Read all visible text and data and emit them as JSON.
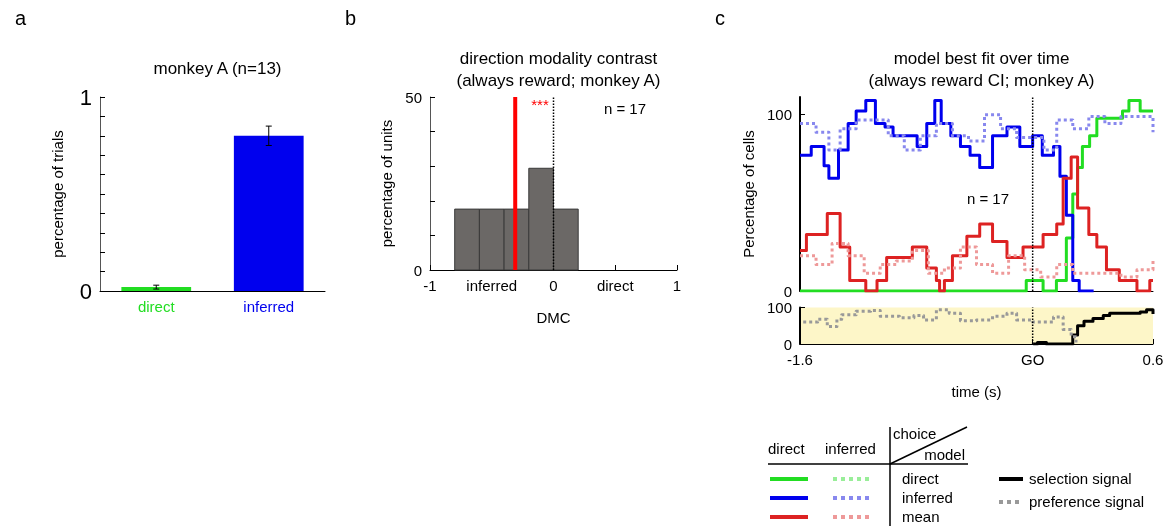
{
  "chart_data": [
    {
      "type": "bar",
      "title": "monkey A (n=13)",
      "ylabel": "percentage of trials",
      "categories": [
        "direct",
        "inferred"
      ],
      "values": [
        0.02,
        0.8
      ],
      "colors": [
        "#22dd22",
        "#0000ee"
      ],
      "errors": [
        0.01,
        0.05
      ],
      "ylim": [
        0,
        1
      ],
      "yticks": [
        0,
        {
          "value": 0.1,
          "label": null
        },
        {
          "value": 0.2,
          "label": null
        },
        {
          "value": 0.3,
          "label": null
        },
        {
          "value": 0.4,
          "label": null
        },
        {
          "value": 0.5,
          "label": null
        },
        {
          "value": 0.6,
          "label": null
        },
        {
          "value": 0.7,
          "label": null
        },
        {
          "value": 0.8,
          "label": null
        },
        {
          "value": 0.9,
          "label": null
        },
        1
      ],
      "annotations": [
        "a"
      ]
    },
    {
      "type": "histogram",
      "title": "direction modality contrast\n(always reward; monkey A)",
      "xlabel": "DMC",
      "ylabel": "percentage of units",
      "bins": [
        -0.8,
        -0.6,
        -0.4,
        -0.2,
        0,
        0.2
      ],
      "values": [
        17.6,
        17.6,
        17.6,
        29.4,
        17.6
      ],
      "color": "#6b6866",
      "xlim": [
        -1,
        1
      ],
      "xticks": [
        -1,
        {
          "value": -0.5,
          "label": "inferred"
        },
        0,
        {
          "value": 0.5,
          "label": "direct"
        },
        1
      ],
      "ylim": [
        0,
        50
      ],
      "yticks": [
        0,
        {
          "value": 10,
          "label": null
        },
        {
          "value": 20,
          "label": null
        },
        {
          "value": 30,
          "label": null
        },
        {
          "value": 40,
          "label": null
        },
        50
      ],
      "ref_lines": [
        {
          "axis": "x",
          "value": -0.31,
          "color": "#ff0000",
          "line_style": "solid"
        },
        {
          "axis": "x",
          "value": 0,
          "color": "#000000",
          "line_style": "dotted"
        }
      ],
      "annotations": [
        "b",
        "n = 17",
        "***"
      ]
    },
    {
      "type": "step",
      "title": "model best fit over time\n(always reward CI; monkey A)",
      "ylabel": "Percentage of cells",
      "xlim": [
        -1.6,
        0.6
      ],
      "ylim": [
        0,
        110
      ],
      "yticks": [
        0,
        100
      ],
      "tick_labels": "y",
      "series": [
        {
          "color": "#22dd22",
          "line_style": "solid",
          "x": [
            -1.6,
            -0.19,
            -0.085,
            -0.002,
            0.06,
            0.1,
            0.13,
            0.16,
            0.205,
            0.25,
            0.33,
            0.41,
            0.45,
            0.52,
            0.59,
            0.6
          ],
          "values": [
            0,
            6,
            0,
            6,
            30,
            55,
            70,
            82,
            88,
            98,
            98,
            102,
            108,
            102,
            102,
            102
          ]
        },
        {
          "color": "#0000ee",
          "line_style": "solid",
          "x": [
            -1.6,
            -1.53,
            -1.45,
            -1.42,
            -1.36,
            -1.3,
            -1.25,
            -1.19,
            -1.13,
            -1.07,
            -1.02,
            -0.94,
            -0.87,
            -0.81,
            -0.76,
            -0.72,
            -0.66,
            -0.6,
            -0.54,
            -0.48,
            -0.4,
            -0.31,
            -0.23,
            -0.15,
            -0.09,
            -0.02,
            0.02,
            0.06,
            0.1,
            0.14,
            0.23
          ],
          "values": [
            77,
            82,
            71,
            64,
            80,
            95,
            102,
            108,
            95,
            93,
            88,
            88,
            82,
            95,
            108,
            95,
            88,
            82,
            77,
            70,
            88,
            93,
            82,
            88,
            77,
            82,
            65,
            43,
            6,
            0,
            0
          ]
        },
        {
          "color": "#8888ee",
          "line_style": "dotted",
          "x": [
            -1.6,
            -1.5,
            -1.42,
            -1.35,
            -1.25,
            -1.15,
            -1.05,
            -0.95,
            -0.85,
            -0.75,
            -0.65,
            -0.55,
            -0.45,
            -0.35,
            -0.25,
            -0.15,
            -0.08,
            0,
            0.1,
            0.2,
            0.3,
            0.4,
            0.5,
            0.6
          ],
          "values": [
            95,
            90,
            80,
            92,
            97,
            97,
            88,
            80,
            88,
            95,
            88,
            85,
            100,
            92,
            87,
            87,
            80,
            97,
            92,
            99,
            95,
            99,
            99,
            90
          ]
        },
        {
          "color": "#dd2222",
          "line_style": "solid",
          "x": [
            -1.6,
            -1.56,
            -1.43,
            -1.35,
            -1.29,
            -1.19,
            -1.12,
            -1.06,
            -0.96,
            -0.9,
            -0.81,
            -0.75,
            -0.73,
            -0.7,
            -0.65,
            -0.56,
            -0.48,
            -0.4,
            -0.31,
            -0.21,
            -0.085,
            0,
            0.04,
            0.09,
            0.13,
            0.2,
            0.25,
            0.31,
            0.39,
            0.5,
            0.58,
            0.6
          ],
          "values": [
            23,
            32,
            44,
            25,
            6,
            0,
            6,
            19,
            19,
            25,
            13,
            6,
            0,
            6,
            20,
            31,
            38,
            28,
            19,
            25,
            32,
            38,
            64,
            76,
            47,
            32,
            25,
            12,
            6,
            0,
            6,
            6
          ]
        },
        {
          "color": "#ee9999",
          "line_style": "dotted",
          "x": [
            -1.6,
            -1.5,
            -1.4,
            -1.3,
            -1.2,
            -1.1,
            -1,
            -0.9,
            -0.8,
            -0.7,
            -0.6,
            -0.5,
            -0.4,
            -0.3,
            -0.2,
            -0.1,
            0,
            0.1,
            0.2,
            0.3,
            0.4,
            0.5,
            0.6
          ],
          "values": [
            20,
            15,
            27,
            20,
            10,
            15,
            17,
            23,
            10,
            13,
            25,
            15,
            10,
            20,
            12,
            8,
            15,
            10,
            10,
            10,
            8,
            12,
            18
          ]
        }
      ],
      "ref_lines": [
        {
          "axis": "x",
          "value": -0.15,
          "color": "#000000",
          "line_style": "dotted"
        }
      ],
      "annotations": [
        "c",
        "n = 17"
      ]
    },
    {
      "type": "step",
      "xlabel": "time (s)",
      "xlim": [
        -1.6,
        0.6
      ],
      "xticks": [
        -1.6,
        {
          "value": -0.15,
          "label": "GO"
        },
        0.6
      ],
      "ylim": [
        0,
        100
      ],
      "yticks": [
        0,
        100
      ],
      "series": [
        {
          "color": "#000000",
          "line_style": "solid",
          "x": [
            -0.147,
            -0.12,
            -0.064,
            0.07,
            0.1,
            0.13,
            0.17,
            0.226,
            0.29,
            0.33,
            0.45,
            0.52,
            0.56,
            0.6
          ],
          "values": [
            0,
            4,
            0,
            0,
            25,
            50,
            62,
            70,
            78,
            84,
            84,
            88,
            94,
            82
          ]
        },
        {
          "color": "#999999",
          "line_style": "dotted",
          "x": [
            -1.58,
            -1.49,
            -1.43,
            -1.37,
            -1.34,
            -1.25,
            -1.16,
            -1.1,
            -0.98,
            -0.89,
            -0.83,
            -0.75,
            -0.67,
            -0.6,
            -0.5,
            -0.4,
            -0.31,
            -0.25,
            -0.15,
            -0.06,
            -0.02,
            0.04,
            0.09,
            0.12
          ],
          "values": [
            60,
            68,
            48,
            68,
            80,
            90,
            92,
            76,
            72,
            78,
            66,
            94,
            84,
            64,
            66,
            76,
            84,
            66,
            60,
            60,
            74,
            40,
            20,
            4
          ]
        }
      ],
      "bands": [
        {
          "axis": "x",
          "from": -1.6,
          "to": 0.6,
          "color": "#fdf6c8"
        }
      ],
      "ref_lines": [
        {
          "axis": "x",
          "value": -0.15,
          "color": "#000000",
          "line_style": "dotted"
        }
      ]
    },
    {
      "type": "other",
      "annotations": [
        "direct",
        "inferred",
        "choice",
        "model",
        "direct",
        "inferred",
        "mean",
        "selection signal",
        "preference signal"
      ],
      "series": [
        {
          "color": "#22dd22",
          "line_style": "solid"
        },
        {
          "color": "#99ee99",
          "line_style": "dotted"
        },
        {
          "color": "#0000ee",
          "line_style": "solid"
        },
        {
          "color": "#8888ee",
          "line_style": "dotted"
        },
        {
          "color": "#dd2222",
          "line_style": "solid"
        },
        {
          "color": "#ee9999",
          "line_style": "dotted"
        },
        {
          "color": "#000000",
          "line_style": "solid"
        },
        {
          "color": "#999999",
          "line_style": "dotted"
        }
      ]
    }
  ]
}
